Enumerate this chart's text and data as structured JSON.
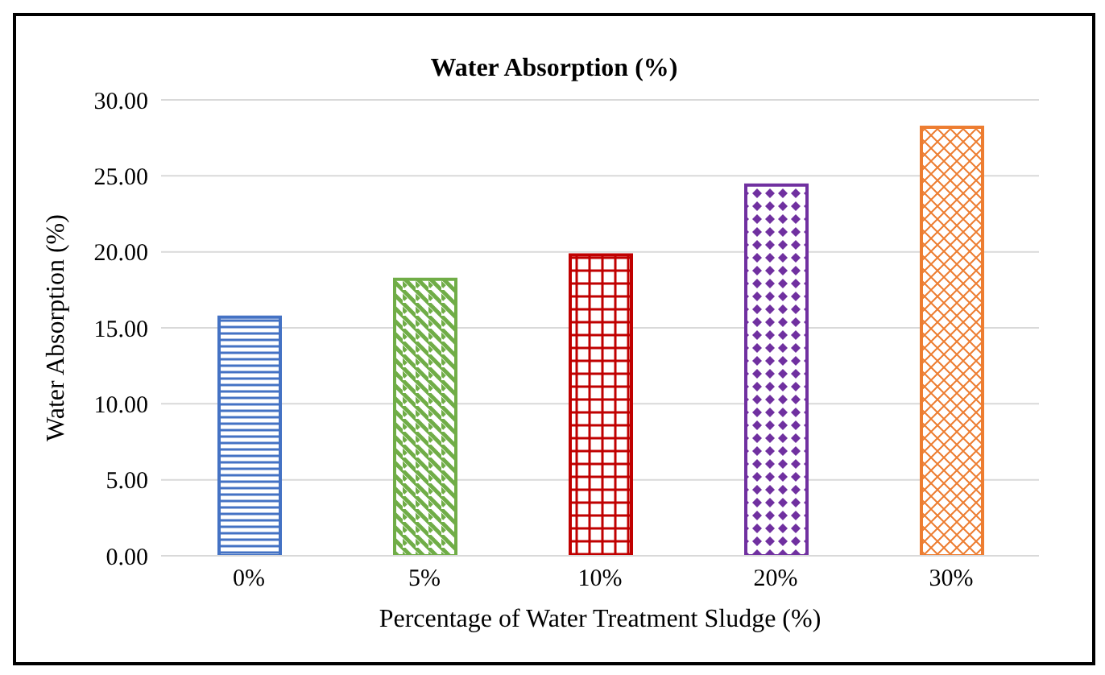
{
  "chart_data": {
    "type": "bar",
    "title": "Water Absorption (%)",
    "xlabel": "Percentage of Water Treatment Sludge (%)",
    "ylabel": "Water Absorption (%)",
    "categories": [
      "0%",
      "5%",
      "10%",
      "20%",
      "30%"
    ],
    "values": [
      15.7,
      18.2,
      19.8,
      24.4,
      28.2
    ],
    "colors": [
      "#4472c4",
      "#70ad47",
      "#c00000",
      "#7030a0",
      "#ed7d31"
    ],
    "ylim": [
      0,
      30
    ],
    "yticks": [
      {
        "value": 0,
        "label": "0.00"
      },
      {
        "value": 5,
        "label": "5.00"
      },
      {
        "value": 10,
        "label": "10.00"
      },
      {
        "value": 15,
        "label": "15.00"
      },
      {
        "value": 20,
        "label": "20.00"
      },
      {
        "value": 25,
        "label": "25.00"
      },
      {
        "value": 30,
        "label": "30.00"
      }
    ],
    "grid": "y",
    "legend": false
  }
}
